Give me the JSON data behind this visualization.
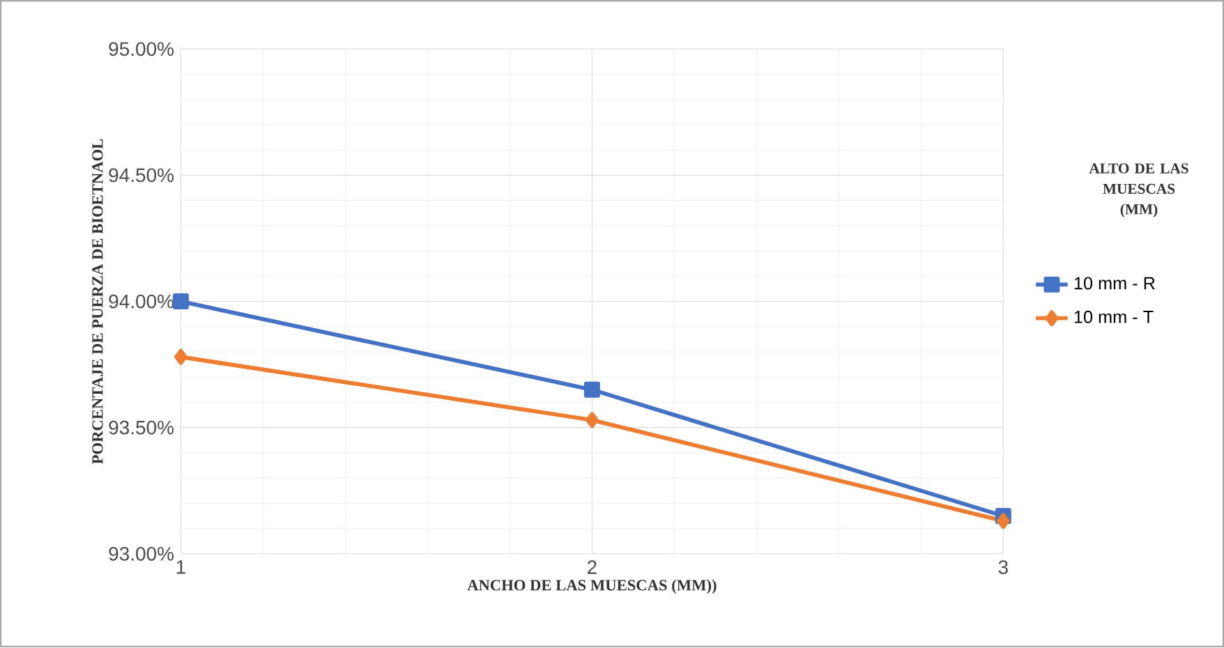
{
  "chart_data": {
    "type": "line",
    "xlabel": "ANCHO DE LAS MUESCAS (MM))",
    "ylabel": "PORCENTAJE DE PUERZA DE BIOETNAOL",
    "legend_title": "ALTO DE LAS MUESCAS (MM)",
    "x": [
      1,
      2,
      3
    ],
    "series": [
      {
        "name": "10 mm - R",
        "color": "#4472c4",
        "marker": "square",
        "values": [
          94.0,
          93.65,
          93.15
        ]
      },
      {
        "name": "10 mm - T",
        "color": "#ed7d31",
        "marker": "diamond",
        "values": [
          93.78,
          93.53,
          93.13
        ]
      }
    ],
    "xlim": [
      1,
      3
    ],
    "xticks": [
      1,
      2,
      3
    ],
    "ylim": [
      93,
      95
    ],
    "yticks": [
      {
        "value": 93,
        "label": "93.00%"
      },
      {
        "value": 93.5,
        "label": "93.50%"
      },
      {
        "value": 94,
        "label": "94.00%"
      },
      {
        "value": 94.5,
        "label": "94.50%"
      },
      {
        "value": 95,
        "label": "95.00%"
      }
    ],
    "grid": true,
    "legend": "right",
    "line_style": "solid"
  }
}
